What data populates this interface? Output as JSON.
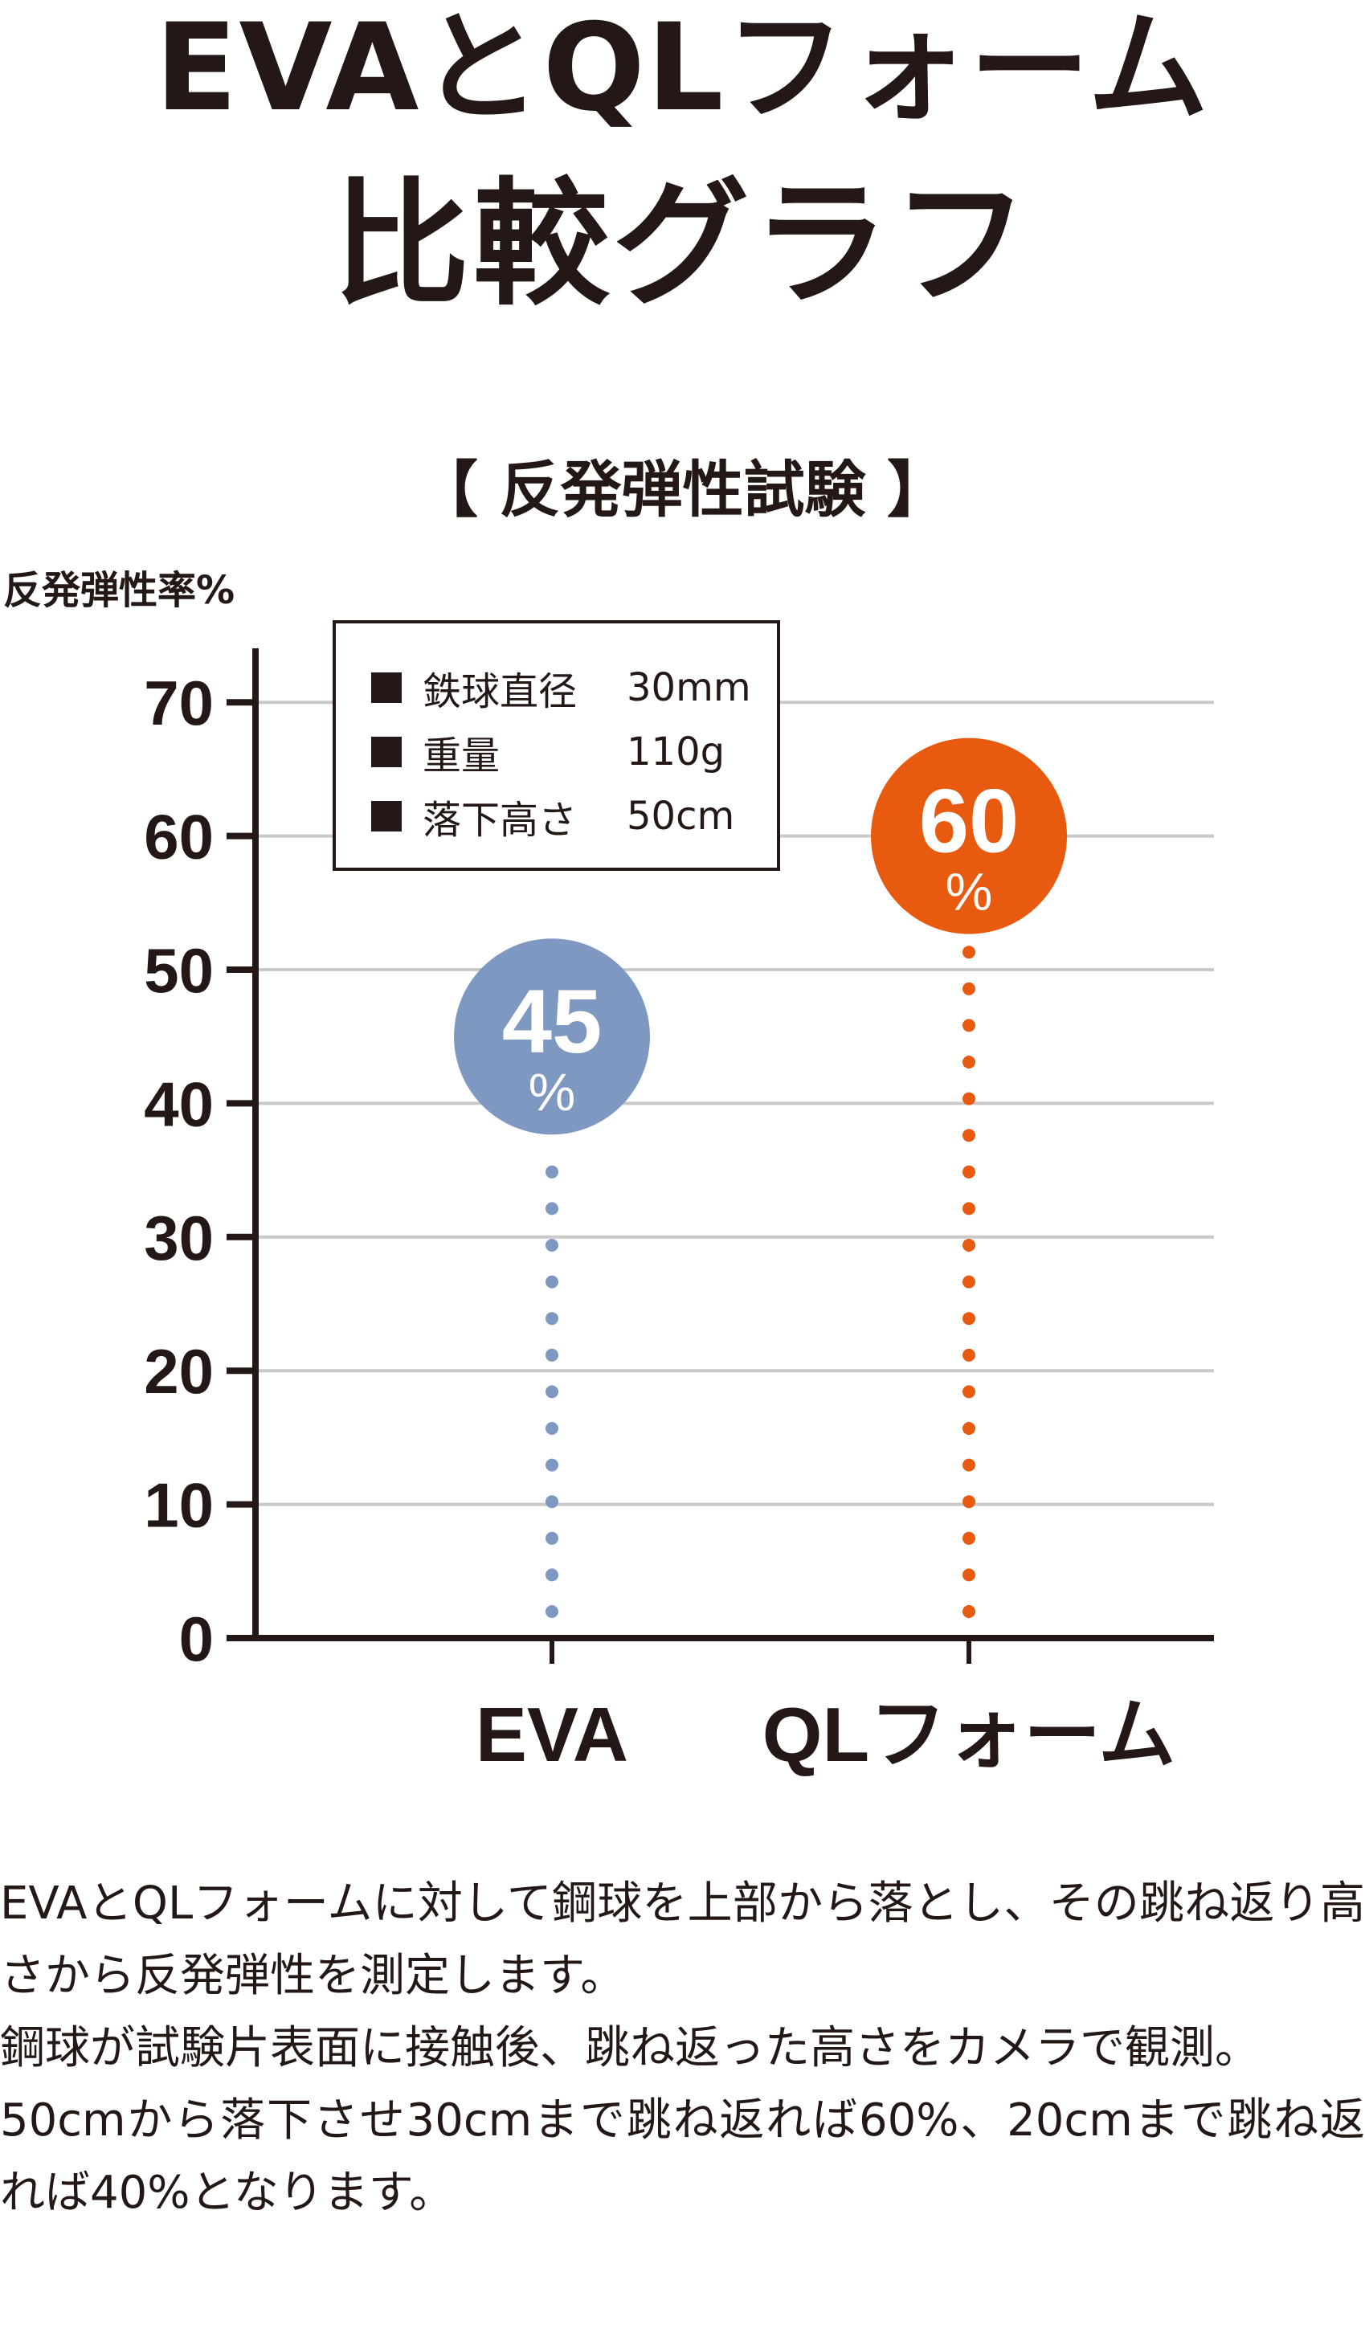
{
  "header": {
    "title_line1": "EVAとQLフォーム",
    "title_line2": "比較グラフ",
    "subtitle": "【 反発弾性試験 】"
  },
  "legend": {
    "items": [
      {
        "key": "鉄球直径",
        "value": "30mm"
      },
      {
        "key": "重量",
        "value": "110g"
      },
      {
        "key": "落下高さ",
        "value": "50cm"
      }
    ]
  },
  "chart_data": {
    "type": "scatter",
    "title": "【 反発弾性試験 】",
    "xlabel": "",
    "ylabel": "反発弾性率%",
    "categories": [
      "EVA",
      "QLフォーム"
    ],
    "values": [
      45,
      60
    ],
    "value_labels": [
      "45",
      "60"
    ],
    "unit_label": "%",
    "colors": [
      "#7f98c1",
      "#e85a0f"
    ],
    "ylim": [
      0,
      70
    ],
    "yticks": [
      0,
      10,
      20,
      30,
      40,
      50,
      60,
      70
    ],
    "grid": true
  },
  "description": [
    "EVAとQLフォームに対して鋼球を上部から落とし、その跳ね返り高さから反発弾性を測定します。",
    "鋼球が試験片表面に接触後、跳ね返った高さをカメラで観測。",
    "50cmから落下させ30cmまで跳ね返れば60%、20cmまで跳ね返れば40%となります。"
  ]
}
